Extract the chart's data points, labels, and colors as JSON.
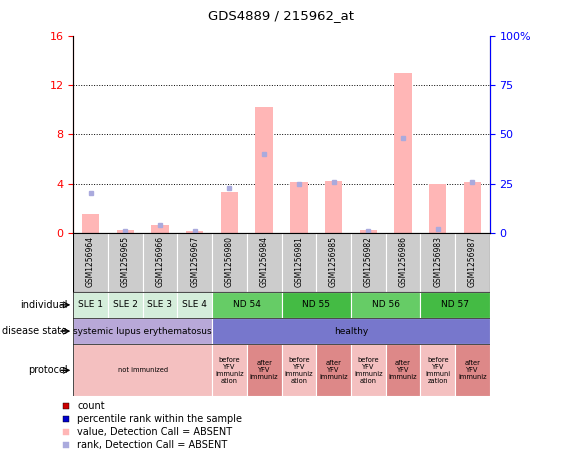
{
  "title": "GDS4889 / 215962_at",
  "samples": [
    "GSM1256964",
    "GSM1256965",
    "GSM1256966",
    "GSM1256967",
    "GSM1256980",
    "GSM1256984",
    "GSM1256981",
    "GSM1256985",
    "GSM1256982",
    "GSM1256986",
    "GSM1256983",
    "GSM1256987"
  ],
  "bar_values": [
    1.5,
    0.2,
    0.6,
    0.15,
    3.3,
    10.2,
    4.1,
    4.2,
    0.2,
    13.0,
    4.0,
    4.1
  ],
  "rank_values": [
    20,
    1,
    4,
    1,
    23,
    40,
    25,
    26,
    1,
    48,
    2,
    26
  ],
  "ylim_left": [
    0,
    16
  ],
  "ylim_right": [
    0,
    100
  ],
  "yticks_left": [
    0,
    4,
    8,
    12,
    16
  ],
  "yticks_right": [
    0,
    25,
    50,
    75,
    100
  ],
  "bar_color": "#ffb6b6",
  "rank_color": "#aaaadd",
  "individual_labels": [
    {
      "text": "SLE 1",
      "start": 0,
      "end": 1,
      "color": "#d4edda"
    },
    {
      "text": "SLE 2",
      "start": 1,
      "end": 2,
      "color": "#d4edda"
    },
    {
      "text": "SLE 3",
      "start": 2,
      "end": 3,
      "color": "#d4edda"
    },
    {
      "text": "SLE 4",
      "start": 3,
      "end": 4,
      "color": "#d4edda"
    },
    {
      "text": "ND 54",
      "start": 4,
      "end": 6,
      "color": "#66cc66"
    },
    {
      "text": "ND 55",
      "start": 6,
      "end": 8,
      "color": "#44bb44"
    },
    {
      "text": "ND 56",
      "start": 8,
      "end": 10,
      "color": "#66cc66"
    },
    {
      "text": "ND 57",
      "start": 10,
      "end": 12,
      "color": "#44bb44"
    }
  ],
  "disease_labels": [
    {
      "text": "systemic lupus erythematosus",
      "start": 0,
      "end": 4,
      "color": "#b8a8d8"
    },
    {
      "text": "healthy",
      "start": 4,
      "end": 12,
      "color": "#7777cc"
    }
  ],
  "protocol_labels": [
    {
      "text": "not immunized",
      "start": 0,
      "end": 4,
      "color": "#f4c0c0"
    },
    {
      "text": "before\nYFV\nimmuniz\nation",
      "start": 4,
      "end": 5,
      "color": "#f4c0c0"
    },
    {
      "text": "after\nYFV\nimmuniz",
      "start": 5,
      "end": 6,
      "color": "#dd8888"
    },
    {
      "text": "before\nYFV\nimmuniz\nation",
      "start": 6,
      "end": 7,
      "color": "#f4c0c0"
    },
    {
      "text": "after\nYFV\nimmuniz",
      "start": 7,
      "end": 8,
      "color": "#dd8888"
    },
    {
      "text": "before\nYFV\nimmuniz\nation",
      "start": 8,
      "end": 9,
      "color": "#f4c0c0"
    },
    {
      "text": "after\nYFV\nimmuniz",
      "start": 9,
      "end": 10,
      "color": "#dd8888"
    },
    {
      "text": "before\nYFV\nimmuni\nzation",
      "start": 10,
      "end": 11,
      "color": "#f4c0c0"
    },
    {
      "text": "after\nYFV\nimmuniz",
      "start": 11,
      "end": 12,
      "color": "#dd8888"
    }
  ],
  "legend_items": [
    {
      "label": "count",
      "color": "#cc0000"
    },
    {
      "label": "percentile rank within the sample",
      "color": "#0000cc"
    },
    {
      "label": "value, Detection Call = ABSENT",
      "color": "#ffb6b6"
    },
    {
      "label": "rank, Detection Call = ABSENT",
      "color": "#aaaadd"
    }
  ],
  "sample_bg_color": "#cccccc"
}
